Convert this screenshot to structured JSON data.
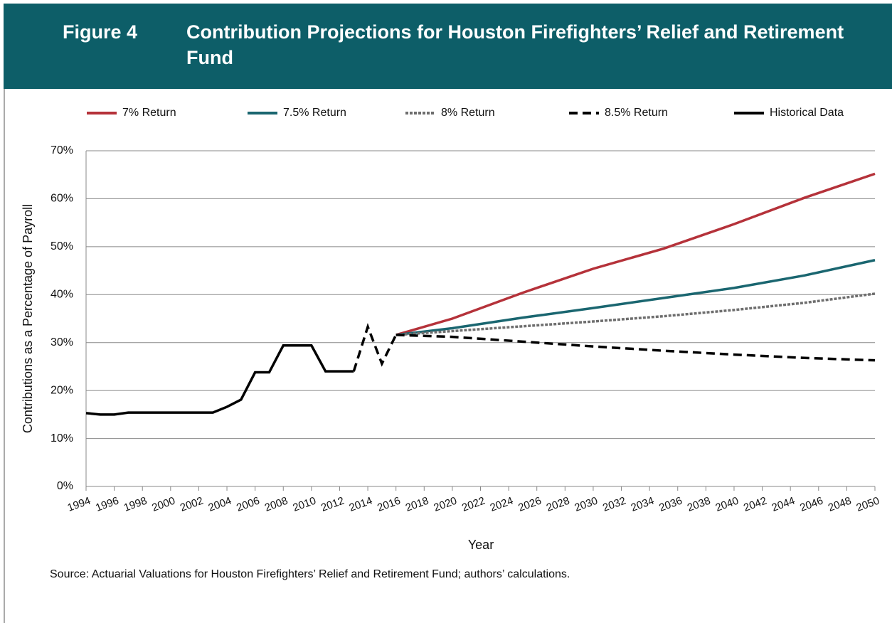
{
  "figure_label": "Figure 4",
  "chart_data": {
    "type": "line",
    "title": "Contribution Projections for Houston Firefighters’ Relief and Retirement Fund",
    "ylabel": "Contributions as a Percentage of Payroll",
    "xlabel": "Year",
    "source": "Source: Actuarial Valuations for Houston Firefighters’ Relief and Retirement Fund; authors’ calculations.",
    "xlim": [
      1994,
      2050
    ],
    "xticks": [
      1994,
      1996,
      1998,
      2000,
      2002,
      2004,
      2006,
      2008,
      2010,
      2012,
      2014,
      2016,
      2018,
      2020,
      2022,
      2024,
      2026,
      2028,
      2030,
      2032,
      2034,
      2036,
      2038,
      2040,
      2042,
      2044,
      2046,
      2048,
      2050
    ],
    "ylim": [
      0,
      70
    ],
    "yticks": [
      {
        "value": 0,
        "label": "0%"
      },
      {
        "value": 10,
        "label": "10%"
      },
      {
        "value": 20,
        "label": "20%"
      },
      {
        "value": 30,
        "label": "30%"
      },
      {
        "value": 40,
        "label": "40%"
      },
      {
        "value": 50,
        "label": "50%"
      },
      {
        "value": 60,
        "label": "60%"
      },
      {
        "value": 70,
        "label": "70%"
      }
    ],
    "grid": true,
    "legend": "top",
    "series": [
      {
        "name": "7% Return",
        "color": "#b5323a",
        "dash": "solid",
        "x": [
          2016,
          2020,
          2025,
          2030,
          2035,
          2040,
          2045,
          2050
        ],
        "values": [
          31.6,
          35.0,
          40.4,
          45.4,
          49.6,
          54.7,
          60.2,
          65.2
        ]
      },
      {
        "name": "7.5% Return",
        "color": "#1a6670",
        "dash": "solid",
        "x": [
          2016,
          2020,
          2025,
          2030,
          2035,
          2040,
          2045,
          2050
        ],
        "values": [
          31.6,
          33.0,
          35.2,
          37.2,
          39.3,
          41.4,
          44.0,
          47.2
        ]
      },
      {
        "name": "8% Return",
        "color": "#6e6e6e",
        "dash": "dotted",
        "x": [
          2016,
          2020,
          2025,
          2030,
          2035,
          2040,
          2045,
          2050
        ],
        "values": [
          31.6,
          32.4,
          33.4,
          34.4,
          35.5,
          36.8,
          38.3,
          40.2
        ]
      },
      {
        "name": "8.5% Return",
        "color": "#000000",
        "dash": "dashed",
        "x": [
          2016,
          2020,
          2025,
          2030,
          2035,
          2040,
          2045,
          2050
        ],
        "values": [
          31.6,
          31.2,
          30.2,
          29.2,
          28.3,
          27.5,
          26.8,
          26.3
        ]
      },
      {
        "name": "Historical Data",
        "color": "#000000",
        "dash": "solid",
        "dashed_from_x": 2013,
        "x": [
          1994,
          1995,
          1996,
          1997,
          1998,
          1999,
          2000,
          2001,
          2002,
          2003,
          2004,
          2005,
          2006,
          2007,
          2008,
          2009,
          2010,
          2011,
          2012,
          2013,
          2014,
          2015,
          2016
        ],
        "values": [
          15.3,
          15.0,
          15.0,
          15.4,
          15.4,
          15.4,
          15.4,
          15.4,
          15.4,
          15.4,
          16.6,
          18.1,
          23.8,
          23.8,
          29.4,
          29.4,
          29.4,
          24.0,
          24.0,
          24.0,
          33.3,
          25.6,
          31.6
        ]
      }
    ]
  }
}
